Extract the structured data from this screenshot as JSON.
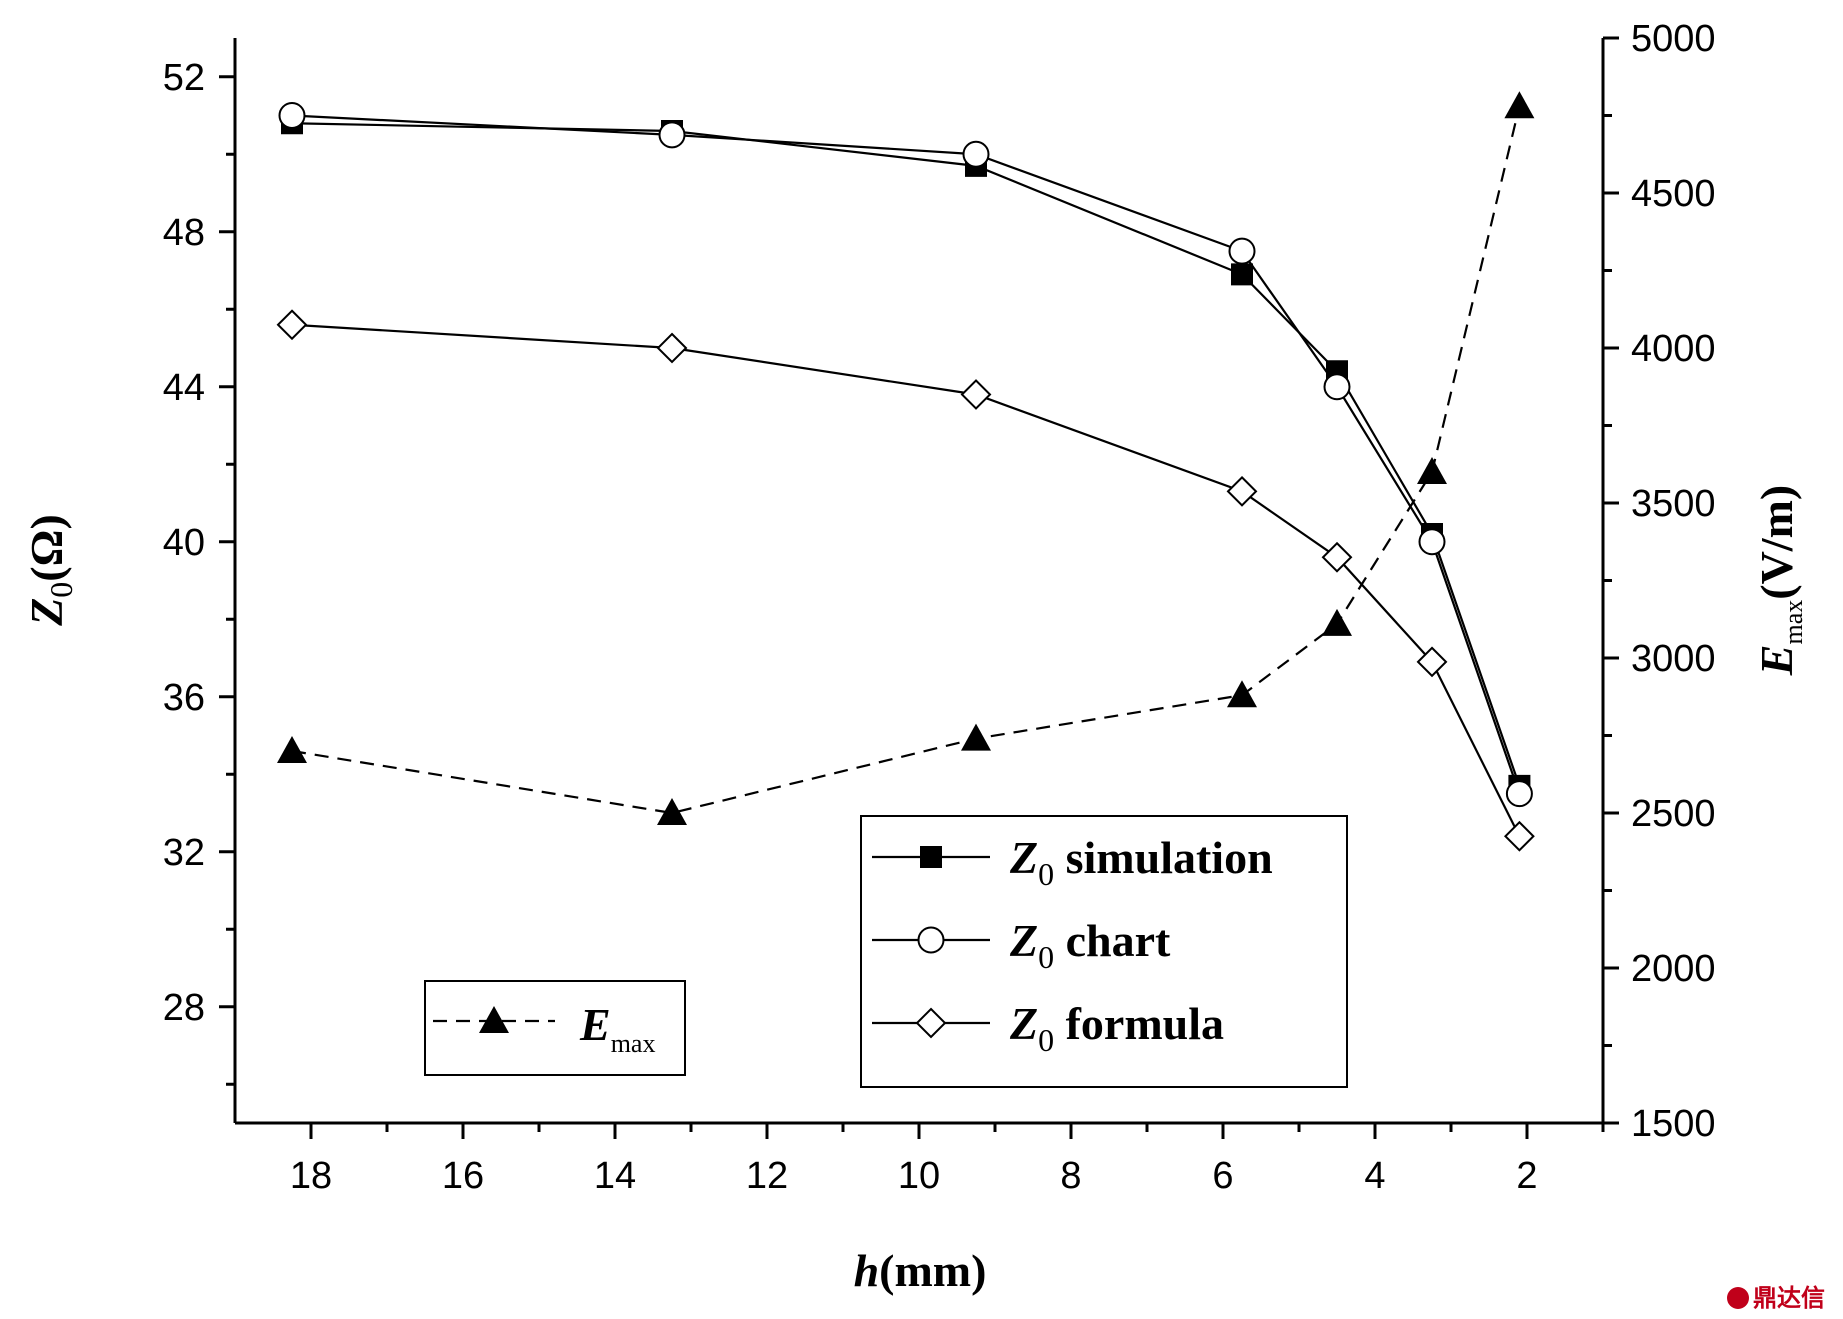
{
  "chart_data": {
    "type": "line",
    "xlabel": {
      "italic": "h",
      "rest": "(mm)"
    },
    "ylabel_left": {
      "italic": "Z",
      "sub": "0",
      "rest": "(Ω)"
    },
    "ylabel_right": {
      "italic": "E",
      "sub": "max",
      "rest": "(V/m)"
    },
    "xlim": [
      19,
      1
    ],
    "x_reversed": true,
    "x_ticks": [
      18,
      16,
      14,
      12,
      10,
      8,
      6,
      4,
      2
    ],
    "ylim_left": [
      25,
      53
    ],
    "y_ticks_left": [
      28,
      32,
      36,
      40,
      44,
      48,
      52
    ],
    "ylim_right": [
      1500,
      5000
    ],
    "y_ticks_right": [
      1500,
      2000,
      2500,
      3000,
      3500,
      4000,
      4500,
      5000
    ],
    "x": [
      18.25,
      13.25,
      9.25,
      5.75,
      4.5,
      3.25,
      2.1
    ],
    "series": [
      {
        "key": "sim",
        "name_italic": "Z",
        "name_sub": "0",
        "name_rest": " simulation",
        "axis": "left",
        "marker": "filled-square",
        "dashed": false,
        "values": [
          50.8,
          50.6,
          49.7,
          46.9,
          44.4,
          40.2,
          33.7
        ]
      },
      {
        "key": "chart",
        "name_italic": "Z",
        "name_sub": "0",
        "name_rest": " chart",
        "axis": "left",
        "marker": "open-circle",
        "dashed": false,
        "values": [
          51.0,
          50.5,
          50.0,
          47.5,
          44.0,
          40.0,
          33.5
        ]
      },
      {
        "key": "formula",
        "name_italic": "Z",
        "name_sub": "0",
        "name_rest": " formula",
        "axis": "left",
        "marker": "open-diamond",
        "dashed": false,
        "values": [
          45.6,
          45.0,
          43.8,
          41.3,
          39.6,
          36.9,
          32.4
        ]
      },
      {
        "key": "emax",
        "name_italic": "E",
        "name_sub": "max",
        "name_rest": "",
        "axis": "right",
        "marker": "filled-triangle",
        "dashed": true,
        "values": [
          2700,
          2500,
          2740,
          2880,
          3110,
          3600,
          4780
        ]
      }
    ],
    "legends": [
      {
        "placement": "bottom-center-right",
        "series": [
          "sim",
          "chart",
          "formula"
        ]
      },
      {
        "placement": "bottom-left",
        "series": [
          "emax"
        ]
      }
    ],
    "grid": false
  },
  "watermark": "鼎达信"
}
